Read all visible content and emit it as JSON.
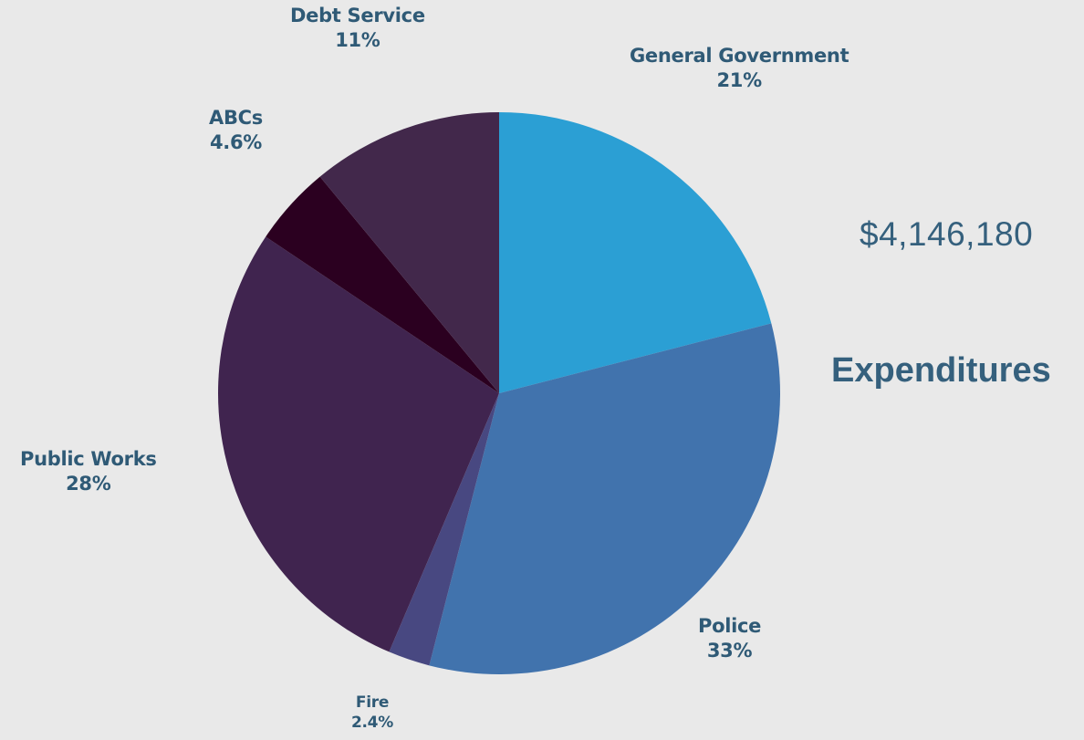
{
  "chart_data": {
    "type": "pie",
    "title": "Expenditures",
    "total": "$4,146,180",
    "slices": [
      {
        "name": "General Government",
        "value": 21,
        "label": "21%",
        "color": "#2b9fd4"
      },
      {
        "name": "Police",
        "value": 33,
        "label": "33%",
        "color": "#4173ad"
      },
      {
        "name": "Fire",
        "value": 2.4,
        "label": "2.4%",
        "color": "#484881"
      },
      {
        "name": "Public Works",
        "value": 28,
        "label": "28%",
        "color": "#40244f"
      },
      {
        "name": "ABCs",
        "value": 4.6,
        "label": "4.6%",
        "color": "#2b0020"
      },
      {
        "name": "Debt Service",
        "value": 11,
        "label": "11%",
        "color": "#42284b"
      }
    ],
    "start_angle_deg": 0,
    "direction": "clockwise",
    "legend": "none"
  }
}
